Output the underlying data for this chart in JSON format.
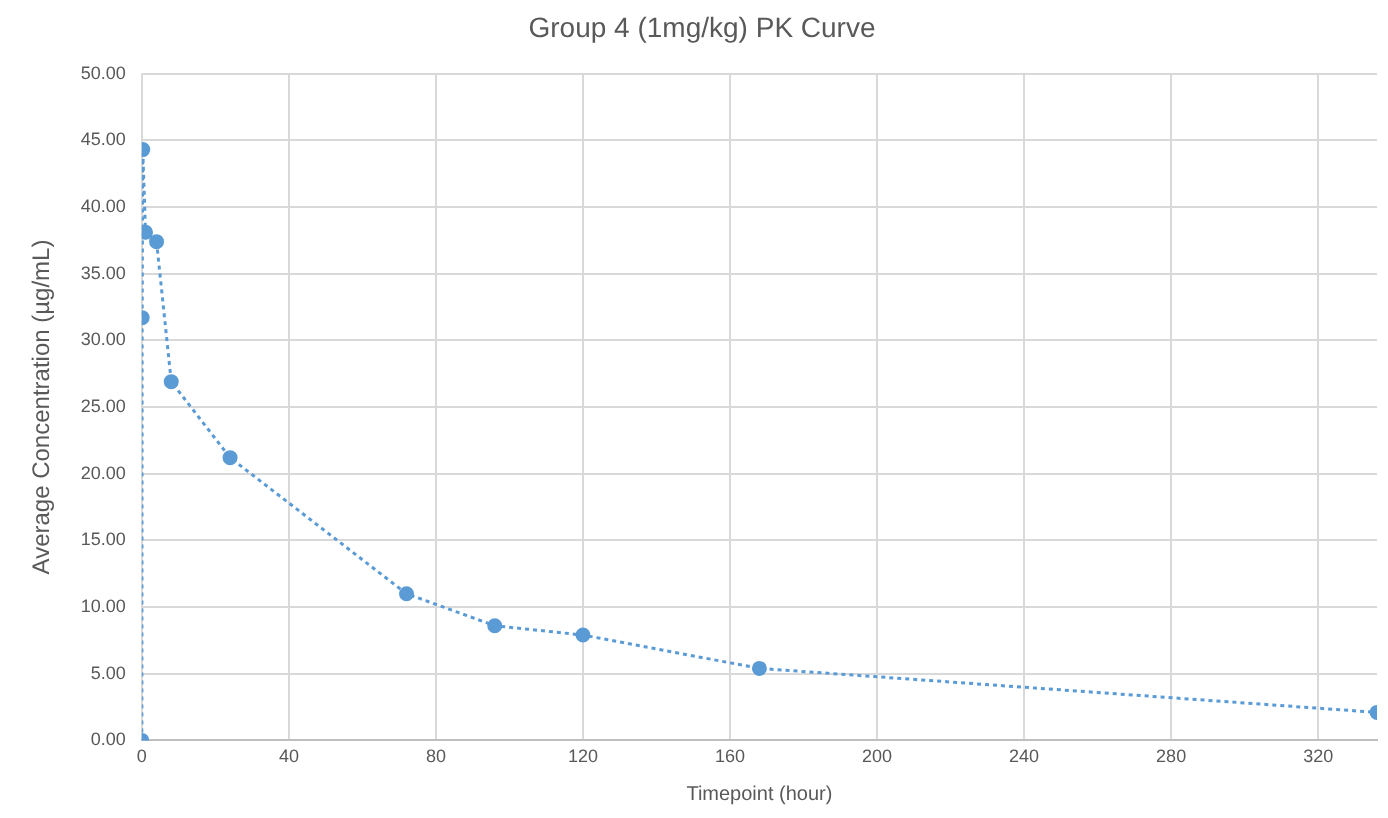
{
  "chart_data": {
    "type": "line",
    "title": "Group 4 (1mg/kg) PK Curve",
    "xlabel": "Timepoint (hour)",
    "ylabel": "Average Concentration (µg/mL)",
    "x": [
      0,
      0.083,
      0.25,
      1,
      4,
      8,
      24,
      72,
      96,
      120,
      168,
      336
    ],
    "series": [
      {
        "color": "#5b9bd5",
        "values": [
          0,
          31.7,
          44.3,
          38.1,
          37.4,
          26.9,
          21.2,
          11.0,
          8.6,
          7.9,
          5.4,
          2.1
        ]
      }
    ],
    "xlim": [
      0,
      336
    ],
    "xticks": [
      0,
      40,
      80,
      120,
      160,
      200,
      240,
      280,
      320
    ],
    "ylim": [
      0,
      50
    ],
    "yticks": [
      {
        "value": 0,
        "label": "0.00"
      },
      {
        "value": 5,
        "label": "5.00"
      },
      {
        "value": 10,
        "label": "10.00"
      },
      {
        "value": 15,
        "label": "15.00"
      },
      {
        "value": 20,
        "label": "20.00"
      },
      {
        "value": 25,
        "label": "25.00"
      },
      {
        "value": 30,
        "label": "30.00"
      },
      {
        "value": 35,
        "label": "35.00"
      },
      {
        "value": 40,
        "label": "40.00"
      },
      {
        "value": 45,
        "label": "45.00"
      },
      {
        "value": 50,
        "label": "50.00"
      }
    ],
    "grid": true,
    "marker": "circle",
    "line_style": "dotted"
  }
}
